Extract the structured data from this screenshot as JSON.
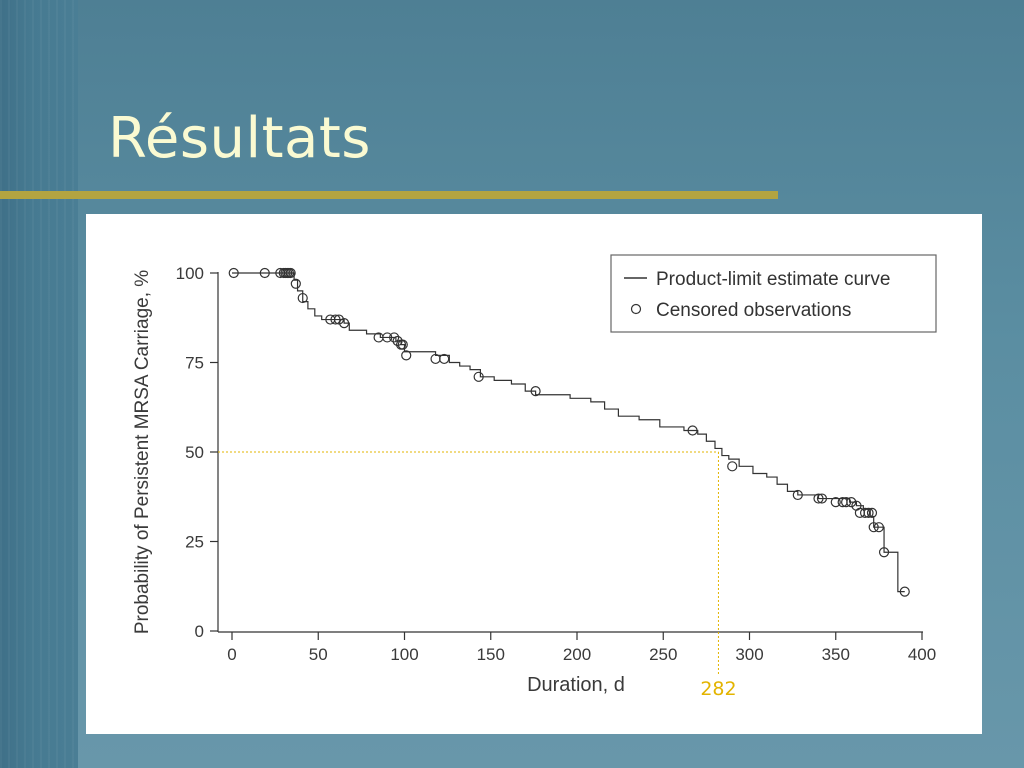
{
  "slide": {
    "title": "Résultats",
    "accent_color": "#b3a441",
    "title_color": "#fafad2"
  },
  "chart_data": {
    "type": "line",
    "xlabel": "Duration, d",
    "ylabel": "Probability of Persistent MRSA Carriage, %",
    "xlim": [
      0,
      400
    ],
    "ylim": [
      0,
      100
    ],
    "xticks": [
      0,
      50,
      100,
      150,
      200,
      250,
      300,
      350,
      400
    ],
    "yticks": [
      0,
      25,
      50,
      75,
      100
    ],
    "legend": {
      "placement": "top-right",
      "entries": [
        "Product-limit estimate curve",
        "Censored observations"
      ]
    },
    "series": [
      {
        "name": "Product-limit estimate curve",
        "step_points": [
          [
            0,
            100
          ],
          [
            35,
            100
          ],
          [
            36,
            98
          ],
          [
            38,
            95
          ],
          [
            41,
            92
          ],
          [
            44,
            90
          ],
          [
            48,
            88
          ],
          [
            52,
            87
          ],
          [
            62,
            87
          ],
          [
            65,
            86
          ],
          [
            68,
            84
          ],
          [
            78,
            83
          ],
          [
            86,
            82
          ],
          [
            95,
            81
          ],
          [
            98,
            80
          ],
          [
            100,
            78
          ],
          [
            118,
            77
          ],
          [
            126,
            75
          ],
          [
            132,
            74
          ],
          [
            138,
            73
          ],
          [
            144,
            71
          ],
          [
            152,
            70
          ],
          [
            162,
            69
          ],
          [
            170,
            67
          ],
          [
            176,
            66
          ],
          [
            186,
            66
          ],
          [
            196,
            65
          ],
          [
            208,
            64
          ],
          [
            216,
            62
          ],
          [
            224,
            60
          ],
          [
            236,
            59
          ],
          [
            248,
            57
          ],
          [
            262,
            56
          ],
          [
            270,
            55
          ],
          [
            275,
            53
          ],
          [
            280,
            51
          ],
          [
            284,
            49
          ],
          [
            288,
            48
          ],
          [
            294,
            46
          ],
          [
            302,
            44
          ],
          [
            310,
            43
          ],
          [
            316,
            41
          ],
          [
            322,
            39
          ],
          [
            328,
            38
          ],
          [
            340,
            37
          ],
          [
            350,
            37
          ],
          [
            358,
            36
          ],
          [
            362,
            35
          ],
          [
            366,
            34
          ],
          [
            370,
            32
          ],
          [
            372,
            29
          ],
          [
            376,
            29
          ],
          [
            378,
            22
          ],
          [
            384,
            22
          ],
          [
            386,
            11
          ],
          [
            390,
            11
          ]
        ]
      },
      {
        "name": "Censored observations",
        "points": [
          [
            1,
            100
          ],
          [
            19,
            100
          ],
          [
            28,
            100
          ],
          [
            30,
            100
          ],
          [
            31,
            100
          ],
          [
            32,
            100
          ],
          [
            33,
            100
          ],
          [
            34,
            100
          ],
          [
            37,
            97
          ],
          [
            41,
            93
          ],
          [
            57,
            87
          ],
          [
            60,
            87
          ],
          [
            62,
            87
          ],
          [
            65,
            86
          ],
          [
            85,
            82
          ],
          [
            90,
            82
          ],
          [
            94,
            82
          ],
          [
            96,
            81
          ],
          [
            98,
            80
          ],
          [
            99,
            80
          ],
          [
            101,
            77
          ],
          [
            118,
            76
          ],
          [
            123,
            76
          ],
          [
            143,
            71
          ],
          [
            176,
            67
          ],
          [
            267,
            56
          ],
          [
            290,
            46
          ],
          [
            328,
            38
          ],
          [
            340,
            37
          ],
          [
            342,
            37
          ],
          [
            350,
            36
          ],
          [
            354,
            36
          ],
          [
            356,
            36
          ],
          [
            359,
            36
          ],
          [
            362,
            35
          ],
          [
            364,
            33
          ],
          [
            367,
            33
          ],
          [
            369,
            33
          ],
          [
            371,
            33
          ],
          [
            372,
            29
          ],
          [
            375,
            29
          ],
          [
            378,
            22
          ],
          [
            390,
            11
          ]
        ]
      }
    ],
    "annotations": [
      {
        "type": "median-guide",
        "x": 282,
        "y": 50,
        "label": "282",
        "color": "#e3b400"
      }
    ]
  }
}
